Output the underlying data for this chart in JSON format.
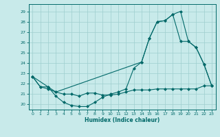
{
  "title": "",
  "xlabel": "Humidex (Indice chaleur)",
  "background_color": "#c8eaea",
  "grid_color": "#9ecece",
  "line_color": "#006868",
  "xlim": [
    -0.5,
    23.5
  ],
  "ylim": [
    19.5,
    29.7
  ],
  "xticks": [
    0,
    1,
    2,
    3,
    4,
    5,
    6,
    7,
    8,
    9,
    10,
    11,
    12,
    13,
    14,
    15,
    16,
    17,
    18,
    19,
    20,
    21,
    22,
    23
  ],
  "yticks": [
    20,
    21,
    22,
    23,
    24,
    25,
    26,
    27,
    28,
    29
  ],
  "line1_x": [
    0,
    1,
    2,
    3,
    4,
    5,
    6,
    7,
    8,
    9,
    10,
    11,
    12,
    13,
    14,
    15,
    16,
    17,
    18,
    19,
    20,
    21,
    22,
    23
  ],
  "line1_y": [
    22.7,
    21.7,
    21.7,
    20.8,
    20.2,
    19.9,
    19.8,
    19.8,
    20.2,
    20.7,
    21.0,
    21.2,
    21.5,
    23.5,
    24.1,
    26.4,
    28.0,
    28.1,
    28.7,
    29.0,
    26.1,
    25.5,
    23.9,
    21.8
  ],
  "line2_x": [
    0,
    1,
    2,
    3,
    4,
    5,
    6,
    7,
    8,
    9,
    10,
    11,
    12,
    13,
    14,
    15,
    16,
    17,
    18,
    19,
    20,
    21,
    22,
    23
  ],
  "line2_y": [
    22.7,
    21.7,
    21.5,
    21.2,
    21.0,
    21.0,
    20.8,
    21.1,
    21.1,
    20.9,
    20.9,
    21.0,
    21.2,
    21.4,
    21.4,
    21.4,
    21.5,
    21.5,
    21.5,
    21.5,
    21.5,
    21.5,
    21.8,
    21.8
  ],
  "line3_x": [
    0,
    2,
    3,
    14,
    15,
    16,
    17,
    18,
    19,
    20,
    21,
    22,
    23
  ],
  "line3_y": [
    22.7,
    21.7,
    21.2,
    24.1,
    26.4,
    28.0,
    28.1,
    28.7,
    26.1,
    26.1,
    25.5,
    23.9,
    21.8
  ]
}
